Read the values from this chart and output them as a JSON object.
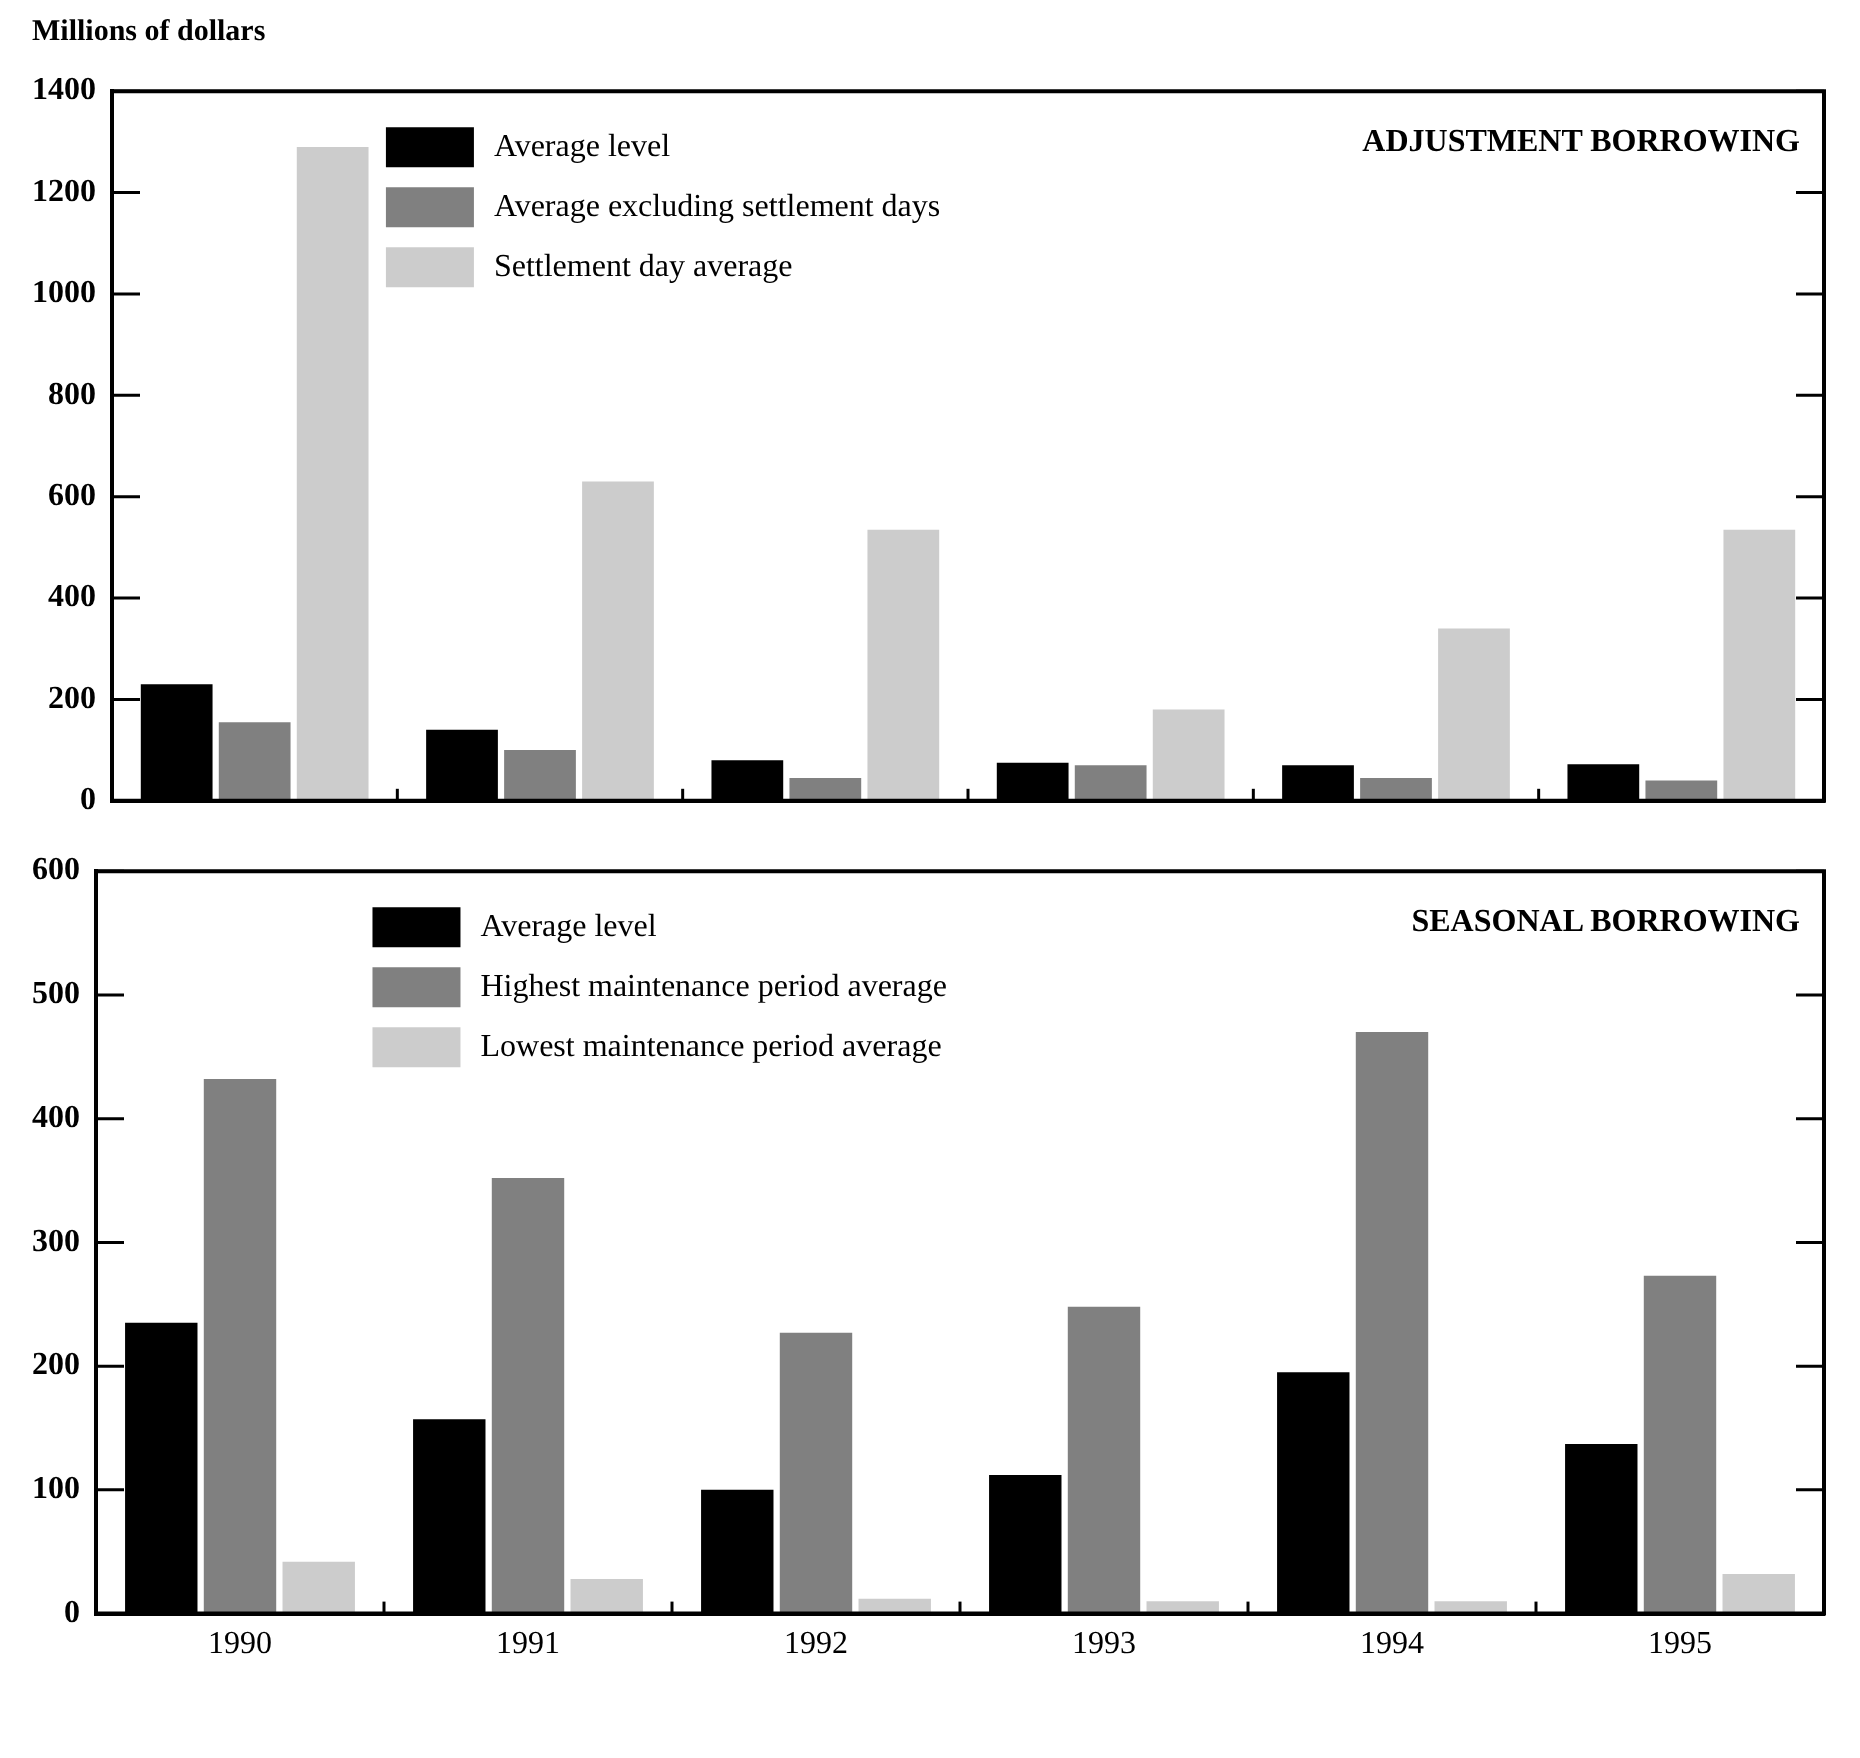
{
  "chart_data": [
    {
      "type": "bar",
      "title": "ADJUSTMENT BORROWING",
      "ylabel": "Millions of dollars",
      "categories": [
        "1990",
        "1991",
        "1992",
        "1993",
        "1994",
        "1995"
      ],
      "ylim": [
        0,
        1400
      ],
      "yticks": [
        0,
        200,
        400,
        600,
        800,
        1000,
        1200,
        1400
      ],
      "tick_labels": "y",
      "grid": false,
      "legend": "top left",
      "series": [
        {
          "name": "Average level",
          "color": "#000000",
          "values": [
            230,
            140,
            80,
            75,
            70,
            72
          ]
        },
        {
          "name": "Average excluding settlement days",
          "color": "#808080",
          "values": [
            155,
            100,
            45,
            70,
            45,
            40
          ]
        },
        {
          "name": "Settlement day average",
          "color": "#cccccc",
          "values": [
            1290,
            630,
            535,
            180,
            340,
            535
          ]
        }
      ]
    },
    {
      "type": "bar",
      "title": "SEASONAL BORROWING",
      "categories": [
        "1990",
        "1991",
        "1992",
        "1993",
        "1994",
        "1995"
      ],
      "ylim": [
        0,
        600
      ],
      "yticks": [
        0,
        100,
        200,
        300,
        400,
        500,
        600
      ],
      "grid": false,
      "legend": "top left",
      "series": [
        {
          "name": "Average level",
          "color": "#000000",
          "values": [
            235,
            157,
            100,
            112,
            195,
            137
          ]
        },
        {
          "name": "Highest maintenance period average",
          "color": "#808080",
          "values": [
            432,
            352,
            227,
            248,
            470,
            273
          ]
        },
        {
          "name": "Lowest maintenance period average",
          "color": "#cccccc",
          "values": [
            42,
            28,
            12,
            10,
            10,
            32
          ]
        }
      ]
    }
  ]
}
